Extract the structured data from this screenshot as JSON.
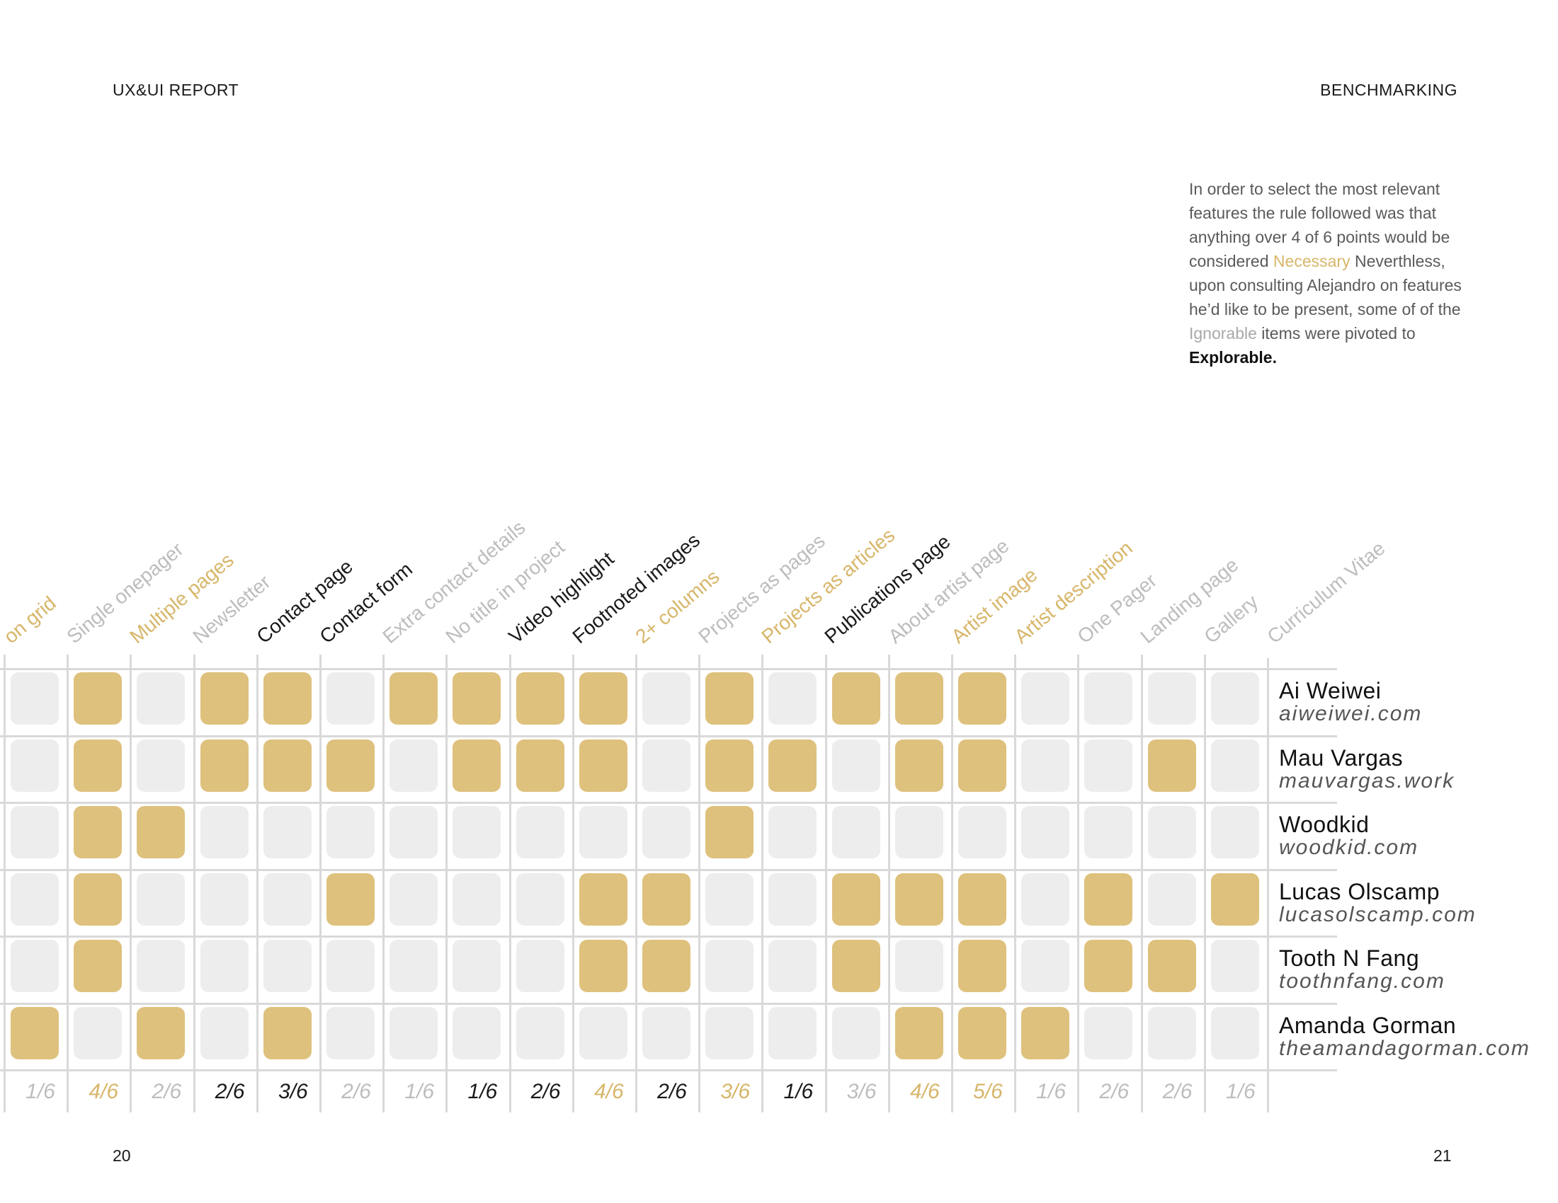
{
  "header": {
    "left": "UX&UI REPORT",
    "right": "BENCHMARKING"
  },
  "intro": {
    "t1": "In order to select the most relevant features the rule followed was that anything over 4 of 6 points would be considered ",
    "necessary": "Necessary",
    "t2": " Neverthless, upon consulting Alejandro on features he’d like to be present, some of of the ",
    "ignorable": "Ignorable",
    "t3": " items were pivoted to ",
    "explorable": "Explorable."
  },
  "colors": {
    "necessary": "#d7b66a",
    "explorable": "#1a1a1a",
    "ignorable": "#bdbdbd",
    "cell_on": "#dec17d",
    "cell_off": "#ededed"
  },
  "features": [
    {
      "label": "on grid",
      "score": "1/6",
      "category": "ignorable",
      "label_category": "necessary"
    },
    {
      "label": "Single onepager",
      "score": "4/6",
      "category": "necessary",
      "label_category": "ignorable"
    },
    {
      "label": "Multiple pages",
      "score": "2/6",
      "category": "ignorable",
      "label_category": "necessary"
    },
    {
      "label": "Newsletter",
      "score": "2/6",
      "category": "explorable",
      "label_category": "ignorable"
    },
    {
      "label": "Contact page",
      "score": "3/6",
      "category": "explorable",
      "label_category": "explorable"
    },
    {
      "label": "Contact form",
      "score": "2/6",
      "category": "ignorable",
      "label_category": "explorable"
    },
    {
      "label": "Extra contact details",
      "score": "1/6",
      "category": "ignorable",
      "label_category": "ignorable"
    },
    {
      "label": "No title in project",
      "score": "1/6",
      "category": "explorable",
      "label_category": "ignorable"
    },
    {
      "label": "Video highlight",
      "score": "2/6",
      "category": "explorable",
      "label_category": "explorable"
    },
    {
      "label": "Footnoted images",
      "score": "4/6",
      "category": "necessary",
      "label_category": "explorable"
    },
    {
      "label": "2+ columns",
      "score": "2/6",
      "category": "explorable",
      "label_category": "necessary"
    },
    {
      "label": "Projects as pages",
      "score": "3/6",
      "category": "necessary",
      "label_category": "ignorable"
    },
    {
      "label": "Projects as articles",
      "score": "1/6",
      "category": "explorable",
      "label_category": "necessary"
    },
    {
      "label": "Publications page",
      "score": "3/6",
      "category": "ignorable",
      "label_category": "explorable"
    },
    {
      "label": "About artist page",
      "score": "4/6",
      "category": "necessary",
      "label_category": "ignorable"
    },
    {
      "label": "Artist image",
      "score": "5/6",
      "category": "necessary",
      "label_category": "necessary"
    },
    {
      "label": "Artist description",
      "score": "1/6",
      "category": "ignorable",
      "label_category": "necessary"
    },
    {
      "label": "One Pager",
      "score": "2/6",
      "category": "ignorable",
      "label_category": "ignorable"
    },
    {
      "label": "Landing page",
      "score": "2/6",
      "category": "ignorable",
      "label_category": "ignorable"
    },
    {
      "label": "Gallery",
      "score": "1/6",
      "category": "ignorable",
      "label_category": "ignorable"
    },
    {
      "label": "Curriculum Vitae",
      "score": "",
      "category": "ignorable",
      "label_category": "ignorable"
    }
  ],
  "sites": [
    {
      "name": "Ai Weiwei",
      "url": "aiweiwei.com",
      "cells": [
        0,
        1,
        0,
        1,
        1,
        0,
        1,
        1,
        1,
        1,
        0,
        1,
        0,
        1,
        1,
        1,
        0,
        0,
        0,
        0
      ]
    },
    {
      "name": "Mau Vargas",
      "url": "mauvargas.work",
      "cells": [
        0,
        1,
        0,
        1,
        1,
        1,
        0,
        1,
        1,
        1,
        0,
        1,
        1,
        0,
        1,
        1,
        0,
        0,
        1,
        0
      ]
    },
    {
      "name": "Woodkid",
      "url": "woodkid.com",
      "cells": [
        0,
        1,
        1,
        0,
        0,
        0,
        0,
        0,
        0,
        0,
        0,
        1,
        0,
        0,
        0,
        0,
        0,
        0,
        0,
        0
      ]
    },
    {
      "name": "Lucas Olscamp",
      "url": "lucasolscamp.com",
      "cells": [
        0,
        1,
        0,
        0,
        0,
        1,
        0,
        0,
        0,
        1,
        1,
        0,
        0,
        1,
        1,
        1,
        0,
        1,
        0,
        1
      ]
    },
    {
      "name": "Tooth N Fang",
      "url": "toothnfang.com",
      "cells": [
        0,
        1,
        0,
        0,
        0,
        0,
        0,
        0,
        0,
        1,
        1,
        0,
        0,
        1,
        0,
        1,
        0,
        1,
        1,
        0
      ]
    },
    {
      "name": "Amanda Gorman",
      "url": "theamandagorman.com",
      "cells": [
        1,
        0,
        1,
        0,
        1,
        0,
        0,
        0,
        0,
        0,
        0,
        0,
        0,
        0,
        1,
        1,
        1,
        0,
        0,
        0
      ]
    }
  ],
  "page_numbers": {
    "left": "20",
    "right": "21"
  }
}
